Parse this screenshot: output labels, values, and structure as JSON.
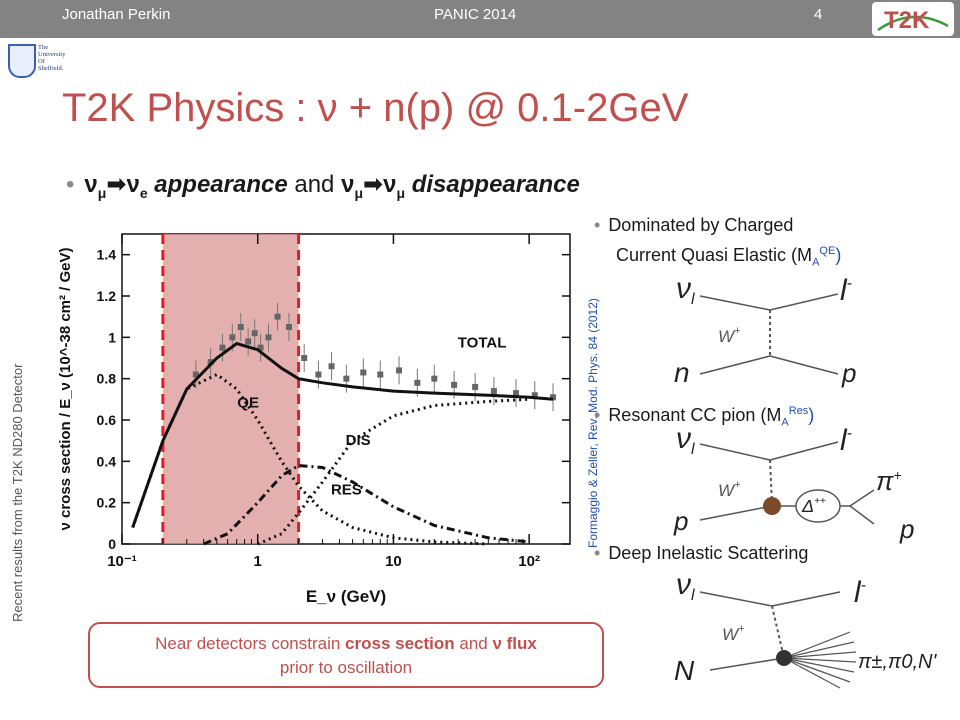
{
  "header": {
    "presenter": "Jonathan Perkin",
    "conference": "PANIC 2014",
    "slide_number": "4",
    "t2k_logo": "T2K"
  },
  "university_logo": {
    "line1": "The",
    "line2": "University",
    "line3": "Of",
    "line4": "Sheffield."
  },
  "title": "T2K Physics : ν + n(p) @ 0.1-2GeV",
  "bullet1": {
    "nu_mu_1": "ν",
    "sub_mu_1": "μ",
    "arrow": "➡",
    "nu_e": "ν",
    "sub_e": "e",
    "appearance": " appearance",
    "and": " and ",
    "nu_mu_2": "ν",
    "sub_mu_2": "μ",
    "nu_mu_3": "ν",
    "sub_mu_3": "μ",
    "disappearance": " disappearance"
  },
  "side_note": "Recent results from the T2K ND280 Detector",
  "reference": "Formaggio & Zeller, Rev. Mod. Phys. 84 (2012)",
  "right_bullets": {
    "qe_line1": "Dominated by Charged",
    "qe_line2": "Current Quasi Elastic (M",
    "qe_sub": "A",
    "qe_sup": "QE",
    "qe_close": ")",
    "res_text": "Resonant CC pion (M",
    "res_sub": "A",
    "res_sup": "Res",
    "res_close": ")",
    "dis_text": "Deep Inelastic Scattering"
  },
  "diagram_qe": {
    "nu": "ν",
    "nu_sub": "l",
    "lepton": "l",
    "lepton_sup": "-",
    "w": "W",
    "w_sup": "+",
    "in": "n",
    "out": "p"
  },
  "diagram_res": {
    "nu": "ν",
    "nu_sub": "l",
    "lepton": "l",
    "lepton_sup": "-",
    "w": "W",
    "w_sup": "+",
    "in": "p",
    "delta": "Δ",
    "delta_sup": "++",
    "pi": "π",
    "pi_sup": "+",
    "out": "p"
  },
  "diagram_dis": {
    "nu": "ν",
    "nu_sub": "l",
    "lepton": "l",
    "lepton_sup": "-",
    "w": "W",
    "w_sup": "+",
    "in": "N",
    "out": "π±,π0,N'"
  },
  "callout": {
    "text1": "Near detectors constrain ",
    "b1": "cross section",
    "text2": " and ",
    "b2": "ν flux",
    "text3": "prior to oscillation"
  },
  "chart_data": {
    "type": "line",
    "xlabel": "E_ν (GeV)",
    "ylabel": "ν cross section / E_ν (10^-38 cm² / GeV)",
    "xscale": "log",
    "xlim": [
      0.1,
      200
    ],
    "ylim": [
      0,
      1.5
    ],
    "x_ticks": [
      {
        "v": 0.1,
        "label": "10⁻¹"
      },
      {
        "v": 1,
        "label": "1"
      },
      {
        "v": 10,
        "label": "10"
      },
      {
        "v": 100,
        "label": "10²"
      }
    ],
    "y_ticks": [
      0,
      0.2,
      0.4,
      0.6,
      0.8,
      1.0,
      1.2,
      1.4
    ],
    "y_tick_labels": [
      "0",
      "0.2",
      "0.4",
      "0.6",
      "0.8",
      "1",
      "1.2",
      "1.4"
    ],
    "shaded_region": [
      0.2,
      2.0
    ],
    "annotations": [
      {
        "text": "TOTAL",
        "x": 45,
        "y": 0.95
      },
      {
        "text": "QE",
        "x": 0.85,
        "y": 0.66
      },
      {
        "text": "DIS",
        "x": 5.5,
        "y": 0.48
      },
      {
        "text": "RES",
        "x": 4.5,
        "y": 0.24
      }
    ],
    "series": [
      {
        "name": "TOTAL",
        "style": "solid",
        "x": [
          0.12,
          0.2,
          0.3,
          0.5,
          0.7,
          1,
          1.5,
          2,
          3,
          5,
          10,
          20,
          50,
          100,
          150
        ],
        "y": [
          0.08,
          0.5,
          0.75,
          0.9,
          0.97,
          0.94,
          0.85,
          0.8,
          0.78,
          0.76,
          0.74,
          0.73,
          0.72,
          0.71,
          0.7
        ]
      },
      {
        "name": "QE",
        "style": "dotted",
        "x": [
          0.12,
          0.2,
          0.3,
          0.5,
          0.7,
          1,
          1.5,
          2,
          3,
          5,
          10,
          20,
          50
        ],
        "y": [
          0.08,
          0.5,
          0.75,
          0.82,
          0.75,
          0.6,
          0.4,
          0.28,
          0.16,
          0.08,
          0.03,
          0.01,
          0.0
        ]
      },
      {
        "name": "RES",
        "style": "dashdot",
        "x": [
          0.4,
          0.6,
          1,
          1.5,
          2,
          3,
          5,
          10,
          20,
          50,
          100
        ],
        "y": [
          0.0,
          0.05,
          0.2,
          0.33,
          0.38,
          0.37,
          0.3,
          0.18,
          0.09,
          0.03,
          0.01
        ]
      },
      {
        "name": "DIS",
        "style": "dotted",
        "x": [
          1,
          1.5,
          2,
          3,
          5,
          10,
          20,
          50,
          100
        ],
        "y": [
          0.0,
          0.05,
          0.15,
          0.3,
          0.5,
          0.62,
          0.67,
          0.69,
          0.7
        ]
      }
    ],
    "data_points": {
      "x": [
        0.35,
        0.45,
        0.55,
        0.65,
        0.75,
        0.85,
        0.95,
        1.05,
        1.2,
        1.4,
        1.7,
        2.2,
        2.8,
        3.5,
        4.5,
        6,
        8,
        11,
        15,
        20,
        28,
        40,
        55,
        80,
        110,
        150
      ],
      "y": [
        0.82,
        0.88,
        0.95,
        1.0,
        1.05,
        0.98,
        1.02,
        0.95,
        1.0,
        1.1,
        1.05,
        0.9,
        0.82,
        0.86,
        0.8,
        0.83,
        0.82,
        0.84,
        0.78,
        0.8,
        0.77,
        0.76,
        0.74,
        0.73,
        0.72,
        0.71
      ]
    }
  }
}
